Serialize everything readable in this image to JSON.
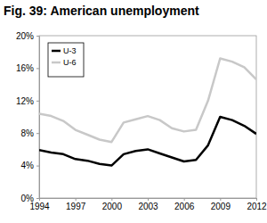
{
  "chart_data": {
    "type": "line",
    "title": "Fig. 39: American unemployment",
    "x": [
      1994,
      1995,
      1996,
      1997,
      1998,
      1999,
      2000,
      2001,
      2002,
      2003,
      2004,
      2005,
      2006,
      2007,
      2008,
      2009,
      2010,
      2011,
      2012
    ],
    "series": [
      {
        "name": "U-3",
        "color": "#000000",
        "values": [
          5.9,
          5.6,
          5.4,
          4.8,
          4.6,
          4.2,
          4.0,
          5.4,
          5.8,
          6.0,
          5.5,
          5.0,
          4.5,
          4.7,
          6.5,
          10.0,
          9.6,
          8.9,
          7.9
        ]
      },
      {
        "name": "U-6",
        "color": "#c8c8c8",
        "values": [
          10.4,
          10.1,
          9.5,
          8.4,
          7.8,
          7.2,
          6.9,
          9.3,
          9.7,
          10.1,
          9.6,
          8.6,
          8.2,
          8.4,
          12.0,
          17.2,
          16.8,
          16.1,
          14.6
        ]
      }
    ],
    "xlim": [
      1994,
      2012
    ],
    "xticks": [
      1994,
      1997,
      2000,
      2003,
      2006,
      2009,
      2012
    ],
    "ylim": [
      0,
      20
    ],
    "yticks": [
      {
        "value": 0,
        "label": "0%"
      },
      {
        "value": 4,
        "label": "4%"
      },
      {
        "value": 8,
        "label": "8%"
      },
      {
        "value": 12,
        "label": "12%"
      },
      {
        "value": 16,
        "label": "16%"
      },
      {
        "value": 20,
        "label": "20%"
      }
    ],
    "grid": false,
    "legend": "top-left"
  }
}
